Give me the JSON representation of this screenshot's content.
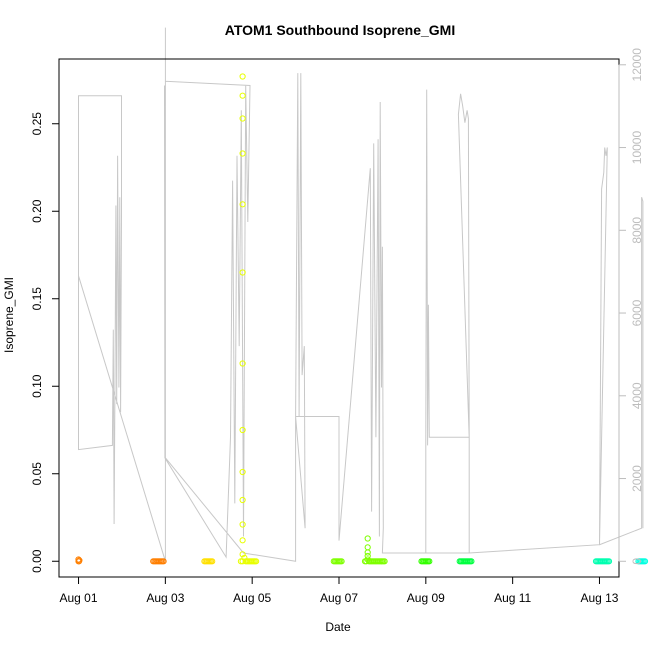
{
  "chart_data": {
    "type": "scatter",
    "title": "ATOM1 Southbound Isoprene_GMI",
    "xlabel": "Date",
    "ylabel": "Isoprene_GMI",
    "x_axis": {
      "ticks": [
        0,
        2,
        4,
        6,
        8,
        10,
        12
      ],
      "tick_labels": [
        "Aug 01",
        "Aug 03",
        "Aug 05",
        "Aug 07",
        "Aug 09",
        "Aug 11",
        "Aug 13"
      ],
      "range_days_from_aug01": [
        -0.45,
        12.45
      ]
    },
    "y_axis_left": {
      "range": [
        -0.009,
        0.287
      ],
      "ticks": [
        0.0,
        0.05,
        0.1,
        0.15,
        0.2,
        0.25
      ],
      "tick_labels": [
        "0.00",
        "0.05",
        "0.10",
        "0.15",
        "0.20",
        "0.25"
      ]
    },
    "y_axis_right": {
      "label": "",
      "range": [
        -380,
        12140
      ],
      "ticks": [
        0,
        2000,
        4000,
        6000,
        8000,
        10000,
        12000
      ],
      "tick_labels": [
        "0",
        "2000",
        "4000",
        "6000",
        "8000",
        "10000",
        "12000"
      ],
      "color": "#bdbdbd"
    },
    "altitude_trace": {
      "color": "#c8c8c8",
      "points": [
        [
          0.0,
          6900
        ],
        [
          0.0,
          11250
        ],
        [
          0.99,
          11250
        ],
        [
          0.99,
          8400
        ],
        [
          0.97,
          3600
        ],
        [
          0.95,
          8800
        ],
        [
          0.93,
          4200
        ],
        [
          0.9,
          9800
        ],
        [
          0.88,
          3800
        ],
        [
          0.86,
          8600
        ],
        [
          0.84,
          4400
        ],
        [
          0.82,
          900
        ],
        [
          0.8,
          5600
        ],
        [
          0.78,
          2800
        ],
        [
          0.0,
          2700
        ],
        [
          0.0,
          6900
        ],
        [
          2.0,
          0
        ],
        [
          2.0,
          12900
        ],
        [
          2.0,
          11000
        ],
        [
          1.98,
          11500
        ],
        [
          1.99,
          2500
        ],
        [
          3.4,
          100
        ],
        [
          3.5,
          3000
        ],
        [
          3.55,
          9200
        ],
        [
          3.6,
          1400
        ],
        [
          3.65,
          9800
        ],
        [
          3.7,
          5200
        ],
        [
          3.75,
          10900
        ],
        [
          3.8,
          600
        ],
        [
          3.85,
          11500
        ],
        [
          3.9,
          8200
        ],
        [
          3.95,
          11500
        ],
        [
          3.95,
          11500
        ],
        [
          2.0,
          11600
        ],
        [
          2.0,
          2500
        ],
        [
          3.8,
          200
        ],
        [
          5.0,
          0
        ],
        [
          5.0,
          3500
        ],
        [
          5.05,
          11800
        ],
        [
          5.08,
          3500
        ],
        [
          5.12,
          11800
        ],
        [
          5.15,
          4500
        ],
        [
          5.2,
          5200
        ],
        [
          5.22,
          800
        ],
        [
          5.0,
          3500
        ],
        [
          6.0,
          3500
        ],
        [
          6.0,
          500
        ],
        [
          6.72,
          9500
        ],
        [
          6.75,
          1200
        ],
        [
          6.8,
          10100
        ],
        [
          6.85,
          3000
        ],
        [
          6.9,
          10200
        ],
        [
          6.93,
          600
        ],
        [
          6.95,
          11100
        ],
        [
          6.98,
          4200
        ],
        [
          7.0,
          7600
        ],
        [
          7.02,
          800
        ],
        [
          7.0,
          200
        ],
        [
          8.0,
          200
        ],
        [
          8.0,
          2900
        ],
        [
          8.02,
          11400
        ],
        [
          8.04,
          2800
        ],
        [
          8.06,
          6200
        ],
        [
          8.08,
          3000
        ],
        [
          9.0,
          3000
        ],
        [
          8.75,
          10800
        ],
        [
          8.8,
          11300
        ],
        [
          8.85,
          11000
        ],
        [
          8.9,
          10600
        ],
        [
          8.95,
          10900
        ],
        [
          8.98,
          10700
        ],
        [
          9.0,
          3000
        ],
        [
          9.0,
          200
        ],
        [
          8.6,
          200
        ],
        [
          7.5,
          200
        ],
        [
          9.0,
          200
        ],
        [
          12.0,
          400
        ],
        [
          12.05,
          9000
        ],
        [
          12.1,
          9400
        ],
        [
          12.12,
          10000
        ],
        [
          12.15,
          9800
        ],
        [
          12.18,
          10000
        ],
        [
          12.0,
          400
        ],
        [
          12.97,
          800
        ],
        [
          12.97,
          8800
        ],
        [
          13.0,
          8700
        ],
        [
          13.0,
          800
        ]
      ]
    },
    "series": [
      {
        "color": "#ff7f00",
        "points": [
          [
            0.0,
            0.0
          ],
          [
            0.0,
            0.001
          ],
          [
            0.01,
            0.0
          ],
          [
            0.02,
            0.0005
          ],
          [
            1.72,
            0.0
          ],
          [
            1.75,
            0.0
          ],
          [
            1.78,
            0.0
          ],
          [
            1.81,
            0.0
          ],
          [
            1.84,
            0.0
          ],
          [
            1.87,
            0.0
          ],
          [
            1.9,
            0.0
          ],
          [
            1.93,
            0.0
          ],
          [
            1.96,
            0.0
          ]
        ]
      },
      {
        "color": "#ffe000",
        "points": [
          [
            2.9,
            0.0
          ],
          [
            2.93,
            0.0
          ],
          [
            2.96,
            0.0
          ],
          [
            2.99,
            0.0
          ],
          [
            3.02,
            0.0
          ],
          [
            3.05,
            0.0
          ],
          [
            3.08,
            0.0
          ]
        ]
      },
      {
        "color": "#e8ff00",
        "points": [
          [
            3.78,
            0.277
          ],
          [
            3.78,
            0.266
          ],
          [
            3.78,
            0.253
          ],
          [
            3.78,
            0.233
          ],
          [
            3.78,
            0.204
          ],
          [
            3.78,
            0.165
          ],
          [
            3.78,
            0.113
          ],
          [
            3.78,
            0.075
          ],
          [
            3.78,
            0.051
          ],
          [
            3.78,
            0.035
          ],
          [
            3.78,
            0.021
          ],
          [
            3.78,
            0.012
          ],
          [
            3.78,
            0.004
          ],
          [
            3.78,
            0.0
          ],
          [
            3.82,
            0.002
          ],
          [
            3.74,
            0.0
          ],
          [
            3.85,
            0.0
          ],
          [
            3.88,
            0.0
          ],
          [
            3.91,
            0.0
          ],
          [
            3.94,
            0.0
          ],
          [
            3.97,
            0.0
          ],
          [
            4.0,
            0.0
          ],
          [
            4.03,
            0.0
          ],
          [
            4.06,
            0.0
          ],
          [
            4.09,
            0.0
          ]
        ]
      },
      {
        "color": "#7fff00",
        "points": [
          [
            5.88,
            0.0
          ],
          [
            5.91,
            0.0
          ],
          [
            5.94,
            0.0
          ],
          [
            5.97,
            0.0
          ],
          [
            6.0,
            0.0
          ],
          [
            6.03,
            0.0
          ],
          [
            6.06,
            0.0
          ],
          [
            6.6,
            0.0
          ],
          [
            6.63,
            0.0
          ],
          [
            6.66,
            0.013
          ],
          [
            6.66,
            0.008
          ],
          [
            6.66,
            0.005
          ],
          [
            6.66,
            0.003
          ],
          [
            6.66,
            0.001
          ],
          [
            6.69,
            0.0
          ],
          [
            6.72,
            0.0
          ],
          [
            6.75,
            0.0
          ],
          [
            6.78,
            0.0
          ],
          [
            6.81,
            0.0
          ],
          [
            6.84,
            0.0
          ],
          [
            6.87,
            0.0
          ],
          [
            6.9,
            0.0
          ],
          [
            6.93,
            0.0
          ],
          [
            6.96,
            0.0
          ],
          [
            6.99,
            0.0
          ],
          [
            7.02,
            0.0
          ],
          [
            7.05,
            0.0
          ]
        ]
      },
      {
        "color": "#33ff00",
        "points": [
          [
            7.9,
            0.0
          ],
          [
            7.93,
            0.0
          ],
          [
            7.96,
            0.0
          ],
          [
            7.99,
            0.0
          ],
          [
            8.02,
            0.0
          ],
          [
            8.05,
            0.0
          ],
          [
            8.08,
            0.0
          ]
        ]
      },
      {
        "color": "#00ff40",
        "points": [
          [
            8.78,
            0.0
          ],
          [
            8.81,
            0.0
          ],
          [
            8.84,
            0.0
          ],
          [
            8.87,
            0.0
          ],
          [
            8.9,
            0.0
          ],
          [
            8.93,
            0.0
          ],
          [
            8.96,
            0.0
          ],
          [
            8.99,
            0.0
          ],
          [
            9.02,
            0.0
          ],
          [
            9.05,
            0.0
          ]
        ]
      },
      {
        "color": "#00ffb0",
        "points": [
          [
            11.92,
            0.0
          ],
          [
            11.95,
            0.0
          ],
          [
            11.98,
            0.0
          ],
          [
            12.01,
            0.0
          ],
          [
            12.04,
            0.0
          ],
          [
            12.07,
            0.0
          ],
          [
            12.1,
            0.0
          ],
          [
            12.13,
            0.0
          ],
          [
            12.16,
            0.0
          ],
          [
            12.19,
            0.0
          ],
          [
            12.22,
            0.0
          ]
        ]
      },
      {
        "color": "#00ffe0",
        "points": [
          [
            12.9,
            0.0
          ],
          [
            12.93,
            0.0
          ],
          [
            12.96,
            0.0
          ],
          [
            12.99,
            0.0
          ],
          [
            13.02,
            0.0
          ],
          [
            13.05,
            0.0
          ]
        ]
      }
    ],
    "grid": false,
    "legend": "none"
  }
}
